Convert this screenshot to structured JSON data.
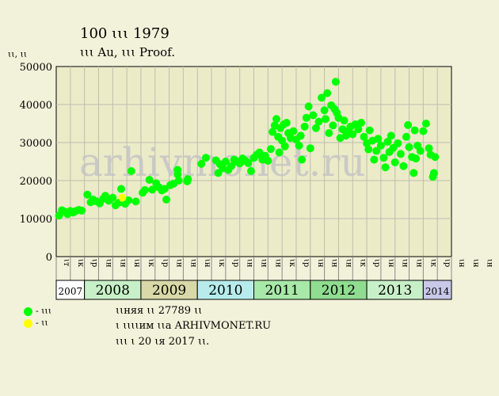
{
  "header": {
    "title": "100 ꙇꙇꙇ 1979",
    "subtitle": "ꙇꙇꙇ Au, ꙇꙇꙇ Proof.",
    "unit": "ꙇꙇ, ꙇꙇ"
  },
  "watermark": "arhivmonet.ru",
  "legend": [
    {
      "label": "- ꙇꙇꙇ",
      "color": "#00ff00"
    },
    {
      "label": "- ꙇꙇ",
      "color": "#ffff00"
    }
  ],
  "info": {
    "line1": "ꙇꙇняя ꙇꙇ 27789 ꙇꙇ",
    "line2": "ꙇ ꙇꙇꙇꙇим ꙇꙇа ARHIVMONET.RU",
    "line3": "ꙇꙇꙇ ꙇ 20 ꙇя 2017 ꙇꙇ."
  },
  "colors": {
    "background": "#f2f2da",
    "plot_background": "#ecebc8",
    "sales": "#00ff00",
    "offers": "#ffff00"
  },
  "chart_data": {
    "type": "scatter",
    "ylim": [
      0,
      50000
    ],
    "y_ticks": [
      0,
      10000,
      20000,
      30000,
      40000,
      50000
    ],
    "x_range": [
      2007.25,
      2014.25
    ],
    "years": [
      {
        "label": "2007",
        "start": 2007.25,
        "end": 2007.75,
        "color": "#ffffff"
      },
      {
        "label": "2008",
        "start": 2007.75,
        "end": 2008.75,
        "color": "#c8f0c8"
      },
      {
        "label": "2009",
        "start": 2008.75,
        "end": 2009.75,
        "color": "#d8d8a8"
      },
      {
        "label": "2010",
        "start": 2009.75,
        "end": 2010.75,
        "color": "#b8ecec"
      },
      {
        "label": "2011",
        "start": 2010.75,
        "end": 2011.75,
        "color": "#a8e8a8"
      },
      {
        "label": "2012",
        "start": 2011.75,
        "end": 2012.75,
        "color": "#90dc90"
      },
      {
        "label": "2013",
        "start": 2012.75,
        "end": 2013.75,
        "color": "#c8f0c8"
      },
      {
        "label": "2014",
        "start": 2013.75,
        "end": 2014.25,
        "color": "#c8c8e8"
      }
    ],
    "month_labels": [
      "ꙇт",
      "ꙇк",
      "ꙇр",
      "ꙇн",
      "ꙇн",
      "ꙇн",
      "ꙇк",
      "ꙇр",
      "ꙇн",
      "ꙇн",
      "ꙇн",
      "ꙇк",
      "ꙇр",
      "ꙇн",
      "ꙇн",
      "ꙇн",
      "ꙇк",
      "ꙇр",
      "ꙇн",
      "ꙇн",
      "ꙇн",
      "ꙇк",
      "ꙇр",
      "ꙇн",
      "ꙇн",
      "ꙇн",
      "ꙇк",
      "ꙇр",
      "ꙇн",
      "ꙇн",
      "ꙇн",
      "ꙇк",
      "ꙇр"
    ],
    "series": [
      {
        "name": "ꙇꙇꙇ",
        "color": "#00ff00",
        "points": [
          [
            2007.3,
            10800
          ],
          [
            2007.35,
            12200
          ],
          [
            2007.4,
            11800
          ],
          [
            2007.45,
            11200
          ],
          [
            2007.5,
            12000
          ],
          [
            2007.55,
            11600
          ],
          [
            2007.6,
            12000
          ],
          [
            2007.65,
            12300
          ],
          [
            2007.7,
            12100
          ],
          [
            2007.8,
            16300
          ],
          [
            2007.86,
            14300
          ],
          [
            2007.9,
            15000
          ],
          [
            2007.95,
            14600
          ],
          [
            2008.02,
            14000
          ],
          [
            2008.08,
            15200
          ],
          [
            2008.12,
            16000
          ],
          [
            2008.18,
            14700
          ],
          [
            2008.25,
            15500
          ],
          [
            2008.3,
            13500
          ],
          [
            2008.36,
            14200
          ],
          [
            2008.4,
            17800
          ],
          [
            2008.47,
            13900
          ],
          [
            2008.53,
            14800
          ],
          [
            2008.58,
            22500
          ],
          [
            2008.66,
            14500
          ],
          [
            2008.78,
            16800
          ],
          [
            2008.82,
            17500
          ],
          [
            2008.9,
            20200
          ],
          [
            2008.95,
            17600
          ],
          [
            2009.02,
            19300
          ],
          [
            2009.07,
            18200
          ],
          [
            2009.12,
            17400
          ],
          [
            2009.17,
            17800
          ],
          [
            2009.2,
            15000
          ],
          [
            2009.27,
            18800
          ],
          [
            2009.33,
            19200
          ],
          [
            2009.4,
            22800
          ],
          [
            2009.4,
            21600
          ],
          [
            2009.42,
            20000
          ],
          [
            2009.57,
            19800
          ],
          [
            2009.58,
            20400
          ],
          [
            2009.82,
            24400
          ],
          [
            2009.9,
            26000
          ],
          [
            2010.08,
            25300
          ],
          [
            2010.12,
            22000
          ],
          [
            2010.15,
            24300
          ],
          [
            2010.2,
            23300
          ],
          [
            2010.25,
            25000
          ],
          [
            2010.3,
            22800
          ],
          [
            2010.35,
            23800
          ],
          [
            2010.4,
            25500
          ],
          [
            2010.45,
            25000
          ],
          [
            2010.5,
            24500
          ],
          [
            2010.55,
            25800
          ],
          [
            2010.6,
            25200
          ],
          [
            2010.65,
            24600
          ],
          [
            2010.7,
            22500
          ],
          [
            2010.75,
            26000
          ],
          [
            2010.8,
            26800
          ],
          [
            2010.85,
            27400
          ],
          [
            2010.9,
            25500
          ],
          [
            2010.95,
            26500
          ],
          [
            2011.0,
            25200
          ],
          [
            2011.05,
            28300
          ],
          [
            2011.08,
            32800
          ],
          [
            2011.12,
            34500
          ],
          [
            2011.15,
            36200
          ],
          [
            2011.18,
            31500
          ],
          [
            2011.2,
            27400
          ],
          [
            2011.22,
            33800
          ],
          [
            2011.25,
            30500
          ],
          [
            2011.28,
            34800
          ],
          [
            2011.3,
            29000
          ],
          [
            2011.33,
            35200
          ],
          [
            2011.36,
            32500
          ],
          [
            2011.4,
            31200
          ],
          [
            2011.45,
            33000
          ],
          [
            2011.5,
            30800
          ],
          [
            2011.55,
            29200
          ],
          [
            2011.58,
            31800
          ],
          [
            2011.6,
            25500
          ],
          [
            2011.65,
            34200
          ],
          [
            2011.68,
            36500
          ],
          [
            2011.72,
            39500
          ],
          [
            2011.75,
            28500
          ],
          [
            2011.8,
            37200
          ],
          [
            2011.85,
            33800
          ],
          [
            2011.9,
            35500
          ],
          [
            2011.95,
            41800
          ],
          [
            2012.0,
            38500
          ],
          [
            2012.02,
            36200
          ],
          [
            2012.05,
            43000
          ],
          [
            2012.08,
            32500
          ],
          [
            2012.12,
            39800
          ],
          [
            2012.15,
            34500
          ],
          [
            2012.18,
            38800
          ],
          [
            2012.2,
            46000
          ],
          [
            2012.22,
            37800
          ],
          [
            2012.25,
            36500
          ],
          [
            2012.28,
            31200
          ],
          [
            2012.32,
            33500
          ],
          [
            2012.35,
            35800
          ],
          [
            2012.38,
            31800
          ],
          [
            2012.42,
            33000
          ],
          [
            2012.46,
            34200
          ],
          [
            2012.5,
            32200
          ],
          [
            2012.55,
            34800
          ],
          [
            2012.6,
            33500
          ],
          [
            2012.65,
            35200
          ],
          [
            2012.7,
            31500
          ],
          [
            2012.75,
            29800
          ],
          [
            2012.78,
            28200
          ],
          [
            2012.8,
            33200
          ],
          [
            2012.85,
            30500
          ],
          [
            2012.88,
            25500
          ],
          [
            2012.92,
            27800
          ],
          [
            2012.95,
            31000
          ],
          [
            2013.0,
            29200
          ],
          [
            2013.05,
            26000
          ],
          [
            2013.08,
            23500
          ],
          [
            2013.12,
            30200
          ],
          [
            2013.15,
            27500
          ],
          [
            2013.18,
            31800
          ],
          [
            2013.22,
            28600
          ],
          [
            2013.25,
            24800
          ],
          [
            2013.3,
            29800
          ],
          [
            2013.35,
            27000
          ],
          [
            2013.4,
            23800
          ],
          [
            2013.45,
            31500
          ],
          [
            2013.48,
            34600
          ],
          [
            2013.5,
            28800
          ],
          [
            2013.55,
            26200
          ],
          [
            2013.58,
            22000
          ],
          [
            2013.6,
            33200
          ],
          [
            2013.62,
            25800
          ],
          [
            2013.65,
            29200
          ],
          [
            2013.7,
            27800
          ],
          [
            2013.75,
            33000
          ],
          [
            2013.8,
            35000
          ],
          [
            2013.85,
            28500
          ],
          [
            2013.88,
            26800
          ],
          [
            2013.92,
            21000
          ],
          [
            2013.94,
            22000
          ],
          [
            2013.96,
            26200
          ]
        ]
      },
      {
        "name": "ꙇꙇ",
        "color": "#ffff00",
        "points": [
          [
            2008.42,
            15500
          ]
        ]
      }
    ]
  }
}
